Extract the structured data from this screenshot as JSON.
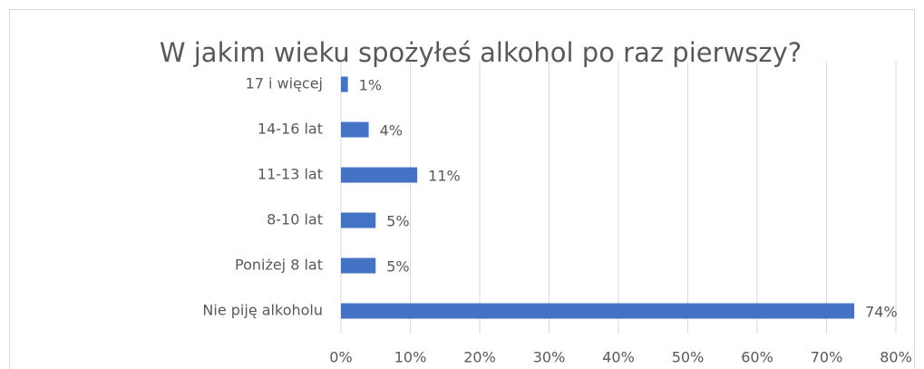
{
  "chart_data": {
    "type": "hbar",
    "title": "W jakim wieku spożyłeś alkohol po raz pierwszy?",
    "categories": [
      "17 i więcej",
      "14-16 lat",
      "11-13 lat",
      "8-10 lat",
      "Poniżej 8 lat",
      "Nie piję alkoholu"
    ],
    "values": [
      1,
      4,
      11,
      5,
      5,
      74
    ],
    "value_labels": [
      "1%",
      "4%",
      "11%",
      "5%",
      "5%",
      "74%"
    ],
    "color": "#4472c4",
    "xlim": [
      0,
      80
    ],
    "xticks": [
      {
        "value": 0,
        "label": "0%"
      },
      {
        "value": 10,
        "label": "10%"
      },
      {
        "value": 20,
        "label": "20%"
      },
      {
        "value": 30,
        "label": "30%"
      },
      {
        "value": 40,
        "label": "40%"
      },
      {
        "value": 50,
        "label": "50%"
      },
      {
        "value": 60,
        "label": "60%"
      },
      {
        "value": 70,
        "label": "70%"
      },
      {
        "value": 80,
        "label": "80%"
      }
    ],
    "grid": true
  }
}
